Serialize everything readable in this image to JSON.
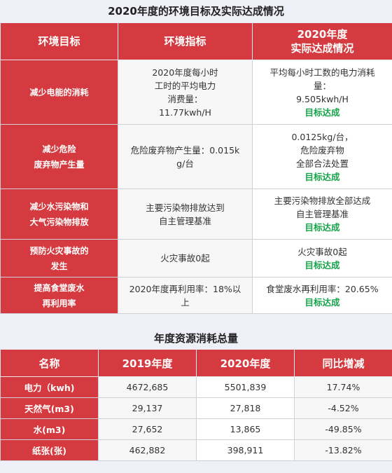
{
  "title": "2020年度的环境目标及实际达成情况",
  "table1": {
    "headers": {
      "goal": "环境目标",
      "indicator": "环境指标",
      "actual_line1": "2020年度",
      "actual_line2": "实际达成情况"
    },
    "rows": [
      {
        "goal": [
          "减少电能的消耗"
        ],
        "indicator": [
          "2020年度每小时",
          "工时的平均电力",
          "消费量：",
          "11.77kwh/H"
        ],
        "actual": [
          "平均每小时工数的电力消耗",
          "量：",
          "9.505kwh/H"
        ],
        "status": "目标达成"
      },
      {
        "goal": [
          "减少危险",
          "废弃物产生量"
        ],
        "indicator": [
          "危险废弃物产生量：0.015k",
          "g/台"
        ],
        "actual": [
          "0.0125kg/台，",
          "危险废弃物",
          "全部合法处置"
        ],
        "status": "目标达成"
      },
      {
        "goal": [
          "减少水污染物和",
          "大气污染物排放"
        ],
        "indicator": [
          "主要污染物排放达到",
          "自主管理基准"
        ],
        "actual": [
          "主要污染物排放全部达成",
          "自主管理基准"
        ],
        "status": "目标达成"
      },
      {
        "goal": [
          "预防火灾事故的",
          "发生"
        ],
        "indicator": [
          "火灾事故0起"
        ],
        "actual": [
          "火灾事故0起"
        ],
        "status": "目标达成"
      },
      {
        "goal": [
          "提高食堂废水",
          "再利用率"
        ],
        "indicator": [
          "2020年度再利用率：18%以",
          "上"
        ],
        "actual": [
          "食堂废水再利用率：20.65%"
        ],
        "status": "目标达成"
      }
    ]
  },
  "title2": "年度资源消耗总量",
  "table2": {
    "headers": [
      "名称",
      "2019年度",
      "2020年度",
      "同比增减"
    ],
    "rows": [
      [
        "电力（kwh)",
        "4672,685",
        "5501,839",
        "17.74%"
      ],
      [
        "天然气(m3)",
        "29,137",
        "27,818",
        "-4.52%"
      ],
      [
        "水(m3)",
        "27,652",
        "13,865",
        "-49.85%"
      ],
      [
        "纸张(张)",
        "462,882",
        "398,911",
        "-13.82%"
      ]
    ]
  },
  "colors": {
    "header_red": "#d43a3f",
    "status_green": "#17a34a",
    "background": "#eeeff7"
  }
}
